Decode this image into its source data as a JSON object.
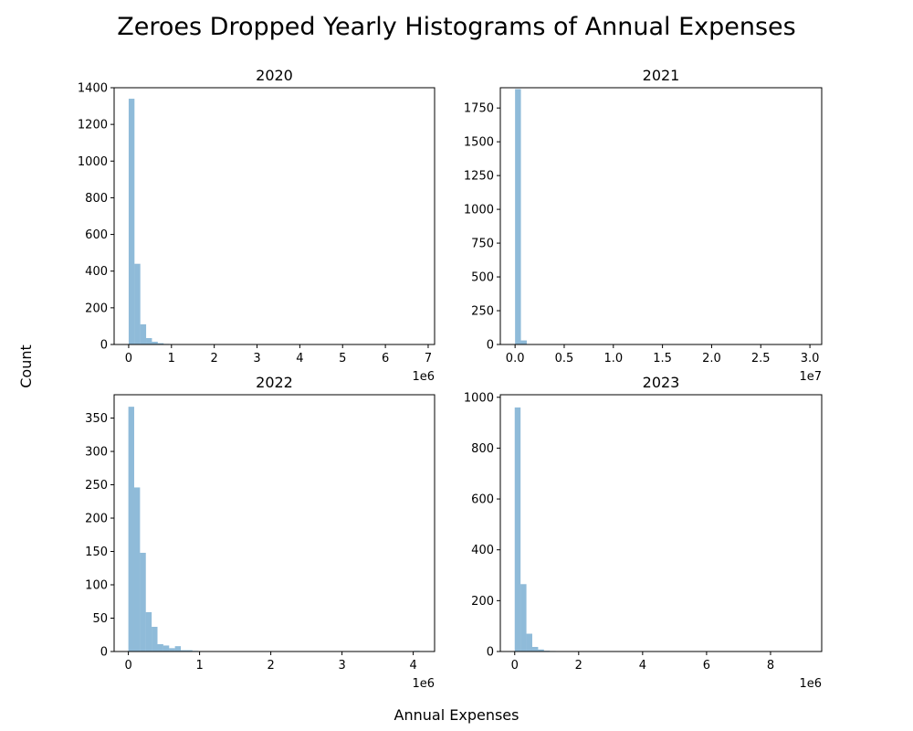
{
  "figure": {
    "title": "Zeroes Dropped Yearly Histograms of Annual Expenses",
    "xlabel": "Annual Expenses",
    "ylabel": "Count",
    "bar_color": "#1f77b4",
    "bar_opacity": 0.5
  },
  "chart_data": [
    {
      "type": "bar",
      "title": "2020",
      "x_offset_label": "1e6",
      "xlim": [
        -0.34,
        7.15
      ],
      "ylim": [
        0,
        1400
      ],
      "xticks": [
        0,
        1,
        2,
        3,
        4,
        5,
        6,
        7
      ],
      "xtick_labels": [
        "0",
        "1",
        "2",
        "3",
        "4",
        "5",
        "6",
        "7"
      ],
      "yticks": [
        0,
        200,
        400,
        600,
        800,
        1000,
        1200,
        1400
      ],
      "ytick_labels": [
        "0",
        "200",
        "400",
        "600",
        "800",
        "1000",
        "1200",
        "1400"
      ],
      "bin_start": 0.0,
      "bin_width": 0.136,
      "values": [
        1340,
        440,
        110,
        35,
        15,
        7,
        3,
        2,
        1,
        1,
        0,
        0,
        0,
        0,
        0,
        0,
        0,
        0,
        0,
        0,
        0,
        0,
        0,
        0,
        0,
        0,
        0,
        0,
        0,
        0,
        0,
        0,
        0,
        0,
        0,
        0,
        0,
        0,
        0,
        0,
        0,
        0,
        0,
        0,
        0,
        0,
        0,
        0,
        0,
        1
      ]
    },
    {
      "type": "bar",
      "title": "2021",
      "x_offset_label": "1e7",
      "xlim": [
        -0.15,
        3.12
      ],
      "ylim": [
        0,
        1900
      ],
      "xticks": [
        0,
        0.5,
        1.0,
        1.5,
        2.0,
        2.5,
        3.0
      ],
      "xtick_labels": [
        "0.0",
        "0.5",
        "1.0",
        "1.5",
        "2.0",
        "2.5",
        "3.0"
      ],
      "yticks": [
        0,
        250,
        500,
        750,
        1000,
        1250,
        1500,
        1750
      ],
      "ytick_labels": [
        "0",
        "250",
        "500",
        "750",
        "1000",
        "1250",
        "1500",
        "1750"
      ],
      "bin_start": 0.0,
      "bin_width": 0.0595,
      "values": [
        1890,
        30,
        3,
        1,
        0,
        0,
        0,
        0,
        0,
        0,
        0,
        0,
        0,
        0,
        0,
        0,
        0,
        0,
        0,
        0,
        0,
        0,
        0,
        0,
        0,
        0,
        0,
        0,
        0,
        0,
        0,
        0,
        0,
        0,
        0,
        0,
        0,
        0,
        0,
        0,
        0,
        0,
        0,
        0,
        0,
        0,
        0,
        0,
        0,
        1
      ]
    },
    {
      "type": "bar",
      "title": "2022",
      "x_offset_label": "1e6",
      "xlim": [
        -0.2,
        4.3
      ],
      "ylim": [
        0,
        385
      ],
      "xticks": [
        0,
        1,
        2,
        3,
        4
      ],
      "xtick_labels": [
        "0",
        "1",
        "2",
        "3",
        "4"
      ],
      "yticks": [
        0,
        50,
        100,
        150,
        200,
        250,
        300,
        350
      ],
      "ytick_labels": [
        "0",
        "50",
        "100",
        "150",
        "200",
        "250",
        "300",
        "350"
      ],
      "bin_start": 0.0,
      "bin_width": 0.0818,
      "values": [
        367,
        246,
        148,
        59,
        37,
        11,
        9,
        5,
        8,
        2,
        2,
        1,
        0,
        0,
        0,
        0,
        0,
        0,
        0,
        0,
        0,
        0,
        0,
        0,
        0,
        0,
        0,
        0,
        0,
        0,
        0,
        0,
        0,
        0,
        0,
        0,
        0,
        0,
        0,
        0,
        0,
        0,
        0,
        0,
        0,
        0,
        0,
        0,
        0,
        1
      ]
    },
    {
      "type": "bar",
      "title": "2023",
      "x_offset_label": "1e6",
      "xlim": [
        -0.45,
        9.6
      ],
      "ylim": [
        0,
        1010
      ],
      "xticks": [
        0,
        2,
        4,
        6,
        8
      ],
      "xtick_labels": [
        "0",
        "2",
        "4",
        "6",
        "8"
      ],
      "yticks": [
        0,
        200,
        400,
        600,
        800,
        1000
      ],
      "ytick_labels": [
        "0",
        "200",
        "400",
        "600",
        "800",
        "1000"
      ],
      "bin_start": 0.0,
      "bin_width": 0.183,
      "values": [
        960,
        265,
        70,
        18,
        8,
        3,
        2,
        1,
        1,
        0,
        0,
        0,
        0,
        0,
        0,
        0,
        0,
        0,
        0,
        0,
        0,
        0,
        0,
        0,
        0,
        0,
        0,
        0,
        0,
        0,
        0,
        0,
        0,
        0,
        0,
        0,
        0,
        0,
        0,
        0,
        0,
        0,
        0,
        0,
        0,
        0,
        0,
        0,
        0,
        1
      ]
    }
  ]
}
